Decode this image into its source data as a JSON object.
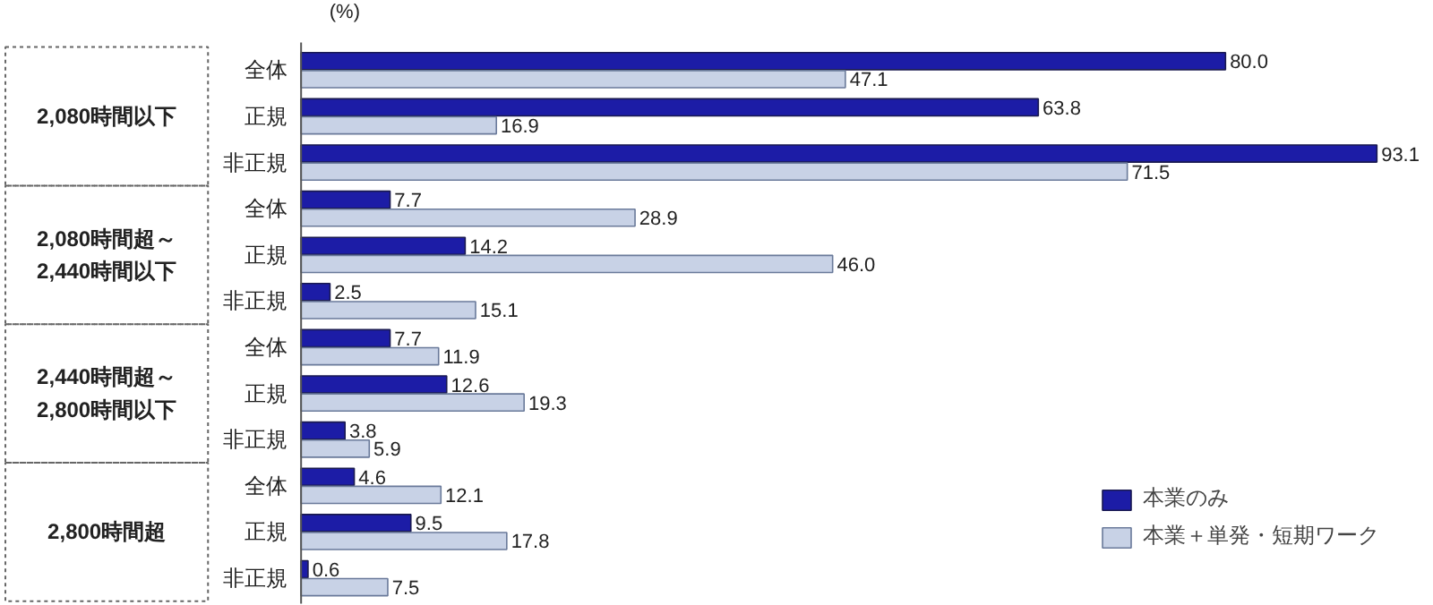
{
  "chart_data": {
    "type": "bar",
    "orientation": "horizontal",
    "xlabel": "(%)",
    "categories": [
      "全体",
      "正規",
      "非正規",
      "全体",
      "正規",
      "非正規",
      "全体",
      "正規",
      "非正規",
      "全体",
      "正規",
      "非正規"
    ],
    "series": [
      {
        "name": "本業のみ",
        "color": "#1c1ca6",
        "values": [
          80.0,
          63.8,
          93.1,
          7.7,
          14.2,
          2.5,
          7.7,
          12.6,
          3.8,
          4.6,
          9.5,
          0.6
        ],
        "value_labels": [
          "80.0",
          "63.8",
          "93.1",
          "7.7",
          "14.2",
          "2.5",
          "7.7",
          "12.6",
          "3.8",
          "4.6",
          "9.5",
          "0.6"
        ]
      },
      {
        "name": "本業＋単発・短期ワーク",
        "color": "#c8d2e6",
        "values": [
          47.1,
          16.9,
          71.5,
          28.9,
          46.0,
          15.1,
          11.9,
          19.3,
          5.9,
          12.1,
          17.8,
          7.5
        ],
        "value_labels": [
          "47.1",
          "16.9",
          "71.5",
          "28.9",
          "46.0",
          "15.1",
          "11.9",
          "19.3",
          "5.9",
          "12.1",
          "17.8",
          "7.5"
        ]
      }
    ],
    "annotations": [
      "2,080時間以下",
      "2,080時間超～\n2,440時間以下",
      "2,440時間超～\n2,800時間以下",
      "2,800時間超"
    ],
    "legend": "bottom right",
    "grid": false
  }
}
